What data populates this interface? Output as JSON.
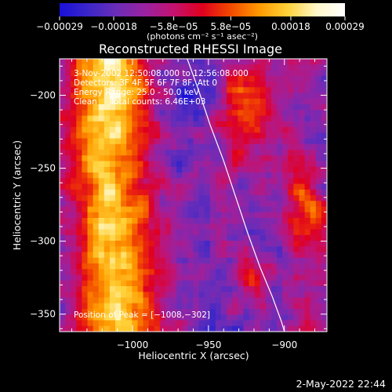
{
  "chart_data": {
    "type": "heatmap",
    "title": "Reconstructed RHESSI Image",
    "xlabel": "Heliocentric X (arcsec)",
    "ylabel": "Heliocentric Y (arcsec)",
    "xlim": [
      -1048,
      -872
    ],
    "ylim": [
      -362,
      -175
    ],
    "xticks": [
      -1000,
      -950,
      -900
    ],
    "xtick_labels": [
      "−1000",
      "−950",
      "−900"
    ],
    "yticks": [
      -200,
      -250,
      -300,
      -350
    ],
    "ytick_labels": [
      "−200",
      "−250",
      "−300",
      "−350"
    ],
    "colorbar": {
      "range": [
        -0.00029,
        0.00029
      ],
      "ticks": [
        -0.00029,
        -0.00018,
        -5.8e-05,
        5.8e-05,
        0.00018,
        0.00029
      ],
      "tick_labels": [
        "−0.00029",
        "−0.00018",
        "−5.8e−05",
        "5.8e−05",
        "0.00018",
        "0.00029"
      ],
      "unit_label": "(photons cm⁻² s⁻¹ asec⁻²)",
      "colors": [
        "#1a10d8",
        "#3a26c8",
        "#6b2db8",
        "#9a22a0",
        "#c4126f",
        "#e0001e",
        "#f24a00",
        "#ff9a00",
        "#ffd23a",
        "#fff7c8",
        "#ffffff"
      ]
    },
    "limb_curve": {
      "x": [
        -964,
        -957,
        -949,
        -940,
        -932,
        -924,
        -916,
        -908,
        -902,
        -900
      ],
      "y": [
        -175,
        -195,
        -220,
        -245,
        -270,
        -295,
        -318,
        -338,
        -355,
        -362
      ]
    },
    "annotations": [
      "3-Nov-2002 12:50:08.000 to 12:56:08.000",
      "Detectors: 3F 4F 5F 6F 7F 8F, Att 0",
      "Energy Range: 25.0 - 50.0 keV",
      "Clean     Total counts: 6.46E+03"
    ],
    "peak_label": "Position of Peak = [−1008,−302]",
    "timestamp": "2-May-2022 22:44"
  }
}
